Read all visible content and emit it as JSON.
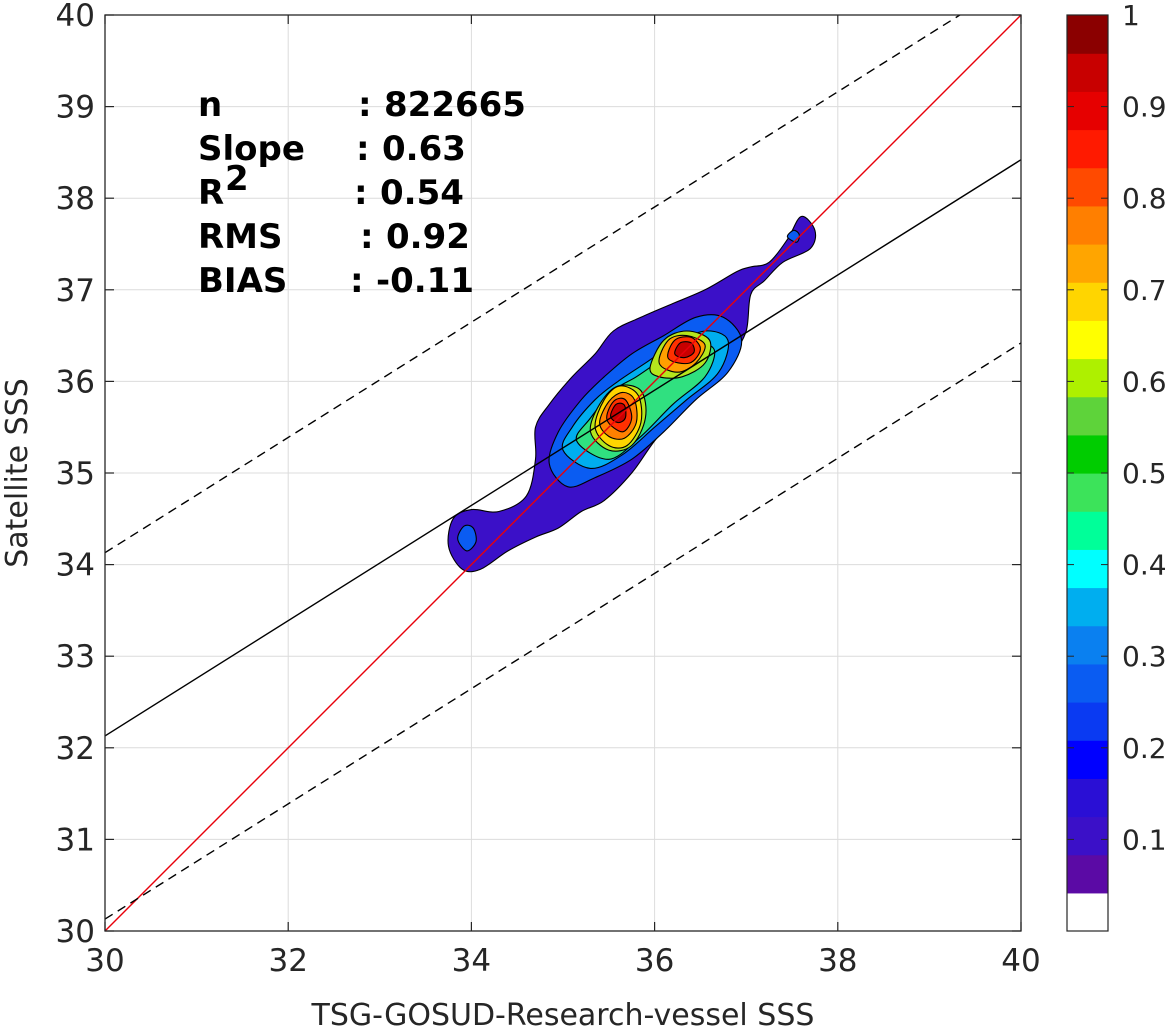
{
  "chart_data": {
    "type": "heatmap",
    "subtype": "filled-contour density scatter",
    "xlabel": "TSG-GOSUD-Research-vessel SSS",
    "ylabel": "Satellite SSS",
    "xlim": [
      30,
      40
    ],
    "ylim": [
      30,
      40
    ],
    "xticks": [
      "30",
      "32",
      "34",
      "36",
      "38",
      "40"
    ],
    "yticks": [
      "30",
      "31",
      "32",
      "33",
      "34",
      "35",
      "36",
      "37",
      "38",
      "39",
      "40"
    ],
    "grid": true,
    "stats": [
      {
        "label": "n",
        "sep": ":",
        "value": "822665"
      },
      {
        "label": "Slope",
        "sep": ":",
        "value": "0.63"
      },
      {
        "label": "R",
        "sup": "2",
        "sep": ":",
        "value": "0.54"
      },
      {
        "label": "RMS",
        "sep": ":",
        "value": "0.92"
      },
      {
        "label": "BIAS",
        "sep": ":",
        "value": "-0.11"
      }
    ],
    "lines": [
      {
        "role": "one-to-one",
        "color": "#e8000b",
        "style": "solid",
        "slope": 1,
        "intercept": 0
      },
      {
        "role": "regression",
        "color": "#000000",
        "style": "solid",
        "slope": 0.63,
        "points": [
          [
            30,
            32.13
          ],
          [
            40,
            38.42
          ]
        ]
      },
      {
        "role": "upper-bound",
        "color": "#000000",
        "style": "dashed",
        "slope": 0.63,
        "points": [
          [
            30,
            34.13
          ],
          [
            40,
            40.42
          ]
        ]
      },
      {
        "role": "lower-bound",
        "color": "#000000",
        "style": "dashed",
        "slope": 0.63,
        "points": [
          [
            30,
            30.13
          ],
          [
            40,
            36.42
          ]
        ]
      }
    ],
    "density_peaks": [
      {
        "x": 35.6,
        "y": 35.7,
        "level": 0.95
      },
      {
        "x": 36.35,
        "y": 36.35,
        "level": 0.95
      }
    ],
    "density_regions": [
      {
        "level": 0.05,
        "color": "#3b10c8",
        "polygon": [
          [
            33.75,
            34.2
          ],
          [
            33.8,
            34.5
          ],
          [
            34.0,
            34.6
          ],
          [
            34.3,
            34.58
          ],
          [
            34.6,
            34.75
          ],
          [
            34.7,
            35.15
          ],
          [
            34.7,
            35.5
          ],
          [
            34.85,
            35.75
          ],
          [
            35.1,
            36.05
          ],
          [
            35.35,
            36.3
          ],
          [
            35.55,
            36.55
          ],
          [
            35.85,
            36.7
          ],
          [
            36.2,
            36.85
          ],
          [
            36.55,
            37.0
          ],
          [
            36.9,
            37.2
          ],
          [
            37.05,
            37.25
          ],
          [
            37.25,
            37.3
          ],
          [
            37.45,
            37.55
          ],
          [
            37.6,
            37.8
          ],
          [
            37.75,
            37.65
          ],
          [
            37.7,
            37.45
          ],
          [
            37.4,
            37.3
          ],
          [
            37.2,
            37.1
          ],
          [
            37.05,
            36.95
          ],
          [
            37.0,
            36.55
          ],
          [
            36.85,
            36.3
          ],
          [
            36.6,
            36.05
          ],
          [
            36.3,
            35.7
          ],
          [
            36.0,
            35.35
          ],
          [
            35.75,
            35.0
          ],
          [
            35.45,
            34.7
          ],
          [
            35.2,
            34.58
          ],
          [
            34.95,
            34.4
          ],
          [
            34.7,
            34.3
          ],
          [
            34.4,
            34.15
          ],
          [
            34.1,
            33.95
          ],
          [
            33.9,
            33.95
          ]
        ]
      },
      {
        "level": 0.15,
        "color": "#0a5cf2",
        "polygon": [
          [
            34.85,
            35.1
          ],
          [
            34.95,
            35.45
          ],
          [
            35.2,
            35.8
          ],
          [
            35.45,
            36.05
          ],
          [
            35.75,
            36.3
          ],
          [
            36.1,
            36.5
          ],
          [
            36.45,
            36.7
          ],
          [
            36.75,
            36.7
          ],
          [
            36.95,
            36.45
          ],
          [
            36.8,
            36.1
          ],
          [
            36.45,
            35.8
          ],
          [
            36.1,
            35.45
          ],
          [
            35.75,
            35.15
          ],
          [
            35.35,
            34.95
          ],
          [
            35.05,
            34.85
          ]
        ]
      },
      {
        "level": 0.3,
        "color": "#00aeef",
        "polygon": [
          [
            35.0,
            35.25
          ],
          [
            35.1,
            35.5
          ],
          [
            35.35,
            35.8
          ],
          [
            35.6,
            36.0
          ],
          [
            35.9,
            36.2
          ],
          [
            36.2,
            36.4
          ],
          [
            36.55,
            36.55
          ],
          [
            36.8,
            36.45
          ],
          [
            36.7,
            36.1
          ],
          [
            36.35,
            35.8
          ],
          [
            36.0,
            35.5
          ],
          [
            35.65,
            35.2
          ],
          [
            35.3,
            35.05
          ]
        ]
      },
      {
        "level": 0.45,
        "color": "#30e080",
        "polygon": [
          [
            35.15,
            35.35
          ],
          [
            35.3,
            35.6
          ],
          [
            35.55,
            35.9
          ],
          [
            35.8,
            36.05
          ],
          [
            36.1,
            36.25
          ],
          [
            36.4,
            36.4
          ],
          [
            36.65,
            36.35
          ],
          [
            36.55,
            36.05
          ],
          [
            36.2,
            35.75
          ],
          [
            35.85,
            35.4
          ],
          [
            35.5,
            35.15
          ]
        ]
      },
      {
        "level": 0.55,
        "color": "#b5e61d",
        "polygon": [
          [
            35.3,
            35.45
          ],
          [
            35.4,
            35.75
          ],
          [
            35.6,
            35.95
          ],
          [
            35.85,
            35.9
          ],
          [
            35.9,
            35.6
          ],
          [
            35.75,
            35.3
          ],
          [
            35.5,
            35.25
          ]
        ]
      },
      {
        "level": 0.65,
        "color": "#ffd500",
        "polygon": [
          [
            35.35,
            35.5
          ],
          [
            35.45,
            35.8
          ],
          [
            35.62,
            35.95
          ],
          [
            35.82,
            35.85
          ],
          [
            35.85,
            35.55
          ],
          [
            35.7,
            35.3
          ],
          [
            35.5,
            35.3
          ]
        ]
      },
      {
        "level": 0.55,
        "color": "#b5e61d",
        "polygon": [
          [
            35.95,
            36.15
          ],
          [
            36.1,
            36.45
          ],
          [
            36.35,
            36.55
          ],
          [
            36.6,
            36.45
          ],
          [
            36.55,
            36.2
          ],
          [
            36.3,
            36.05
          ],
          [
            36.05,
            36.05
          ]
        ]
      },
      {
        "level": 0.7,
        "color": "#ff9f00",
        "polygon": [
          [
            36.05,
            36.2
          ],
          [
            36.15,
            36.45
          ],
          [
            36.35,
            36.5
          ],
          [
            36.55,
            36.4
          ],
          [
            36.45,
            36.2
          ],
          [
            36.25,
            36.1
          ]
        ]
      },
      {
        "level": 0.75,
        "color": "#ff8000",
        "polygon": [
          [
            35.4,
            35.55
          ],
          [
            35.5,
            35.78
          ],
          [
            35.65,
            35.88
          ],
          [
            35.78,
            35.8
          ],
          [
            35.8,
            35.55
          ],
          [
            35.67,
            35.38
          ],
          [
            35.5,
            35.4
          ]
        ]
      },
      {
        "level": 0.85,
        "color": "#ff3000",
        "polygon": [
          [
            35.48,
            35.58
          ],
          [
            35.55,
            35.78
          ],
          [
            35.68,
            35.8
          ],
          [
            35.75,
            35.6
          ],
          [
            35.65,
            35.45
          ]
        ]
      },
      {
        "level": 0.85,
        "color": "#ff3000",
        "polygon": [
          [
            36.15,
            36.25
          ],
          [
            36.22,
            36.45
          ],
          [
            36.4,
            36.48
          ],
          [
            36.5,
            36.35
          ],
          [
            36.38,
            36.2
          ]
        ]
      },
      {
        "level": 0.95,
        "color": "#c80000",
        "polygon": [
          [
            35.52,
            35.62
          ],
          [
            35.58,
            35.75
          ],
          [
            35.67,
            35.74
          ],
          [
            35.68,
            35.6
          ],
          [
            35.6,
            35.55
          ]
        ]
      },
      {
        "level": 0.95,
        "color": "#c80000",
        "polygon": [
          [
            36.22,
            36.3
          ],
          [
            36.28,
            36.42
          ],
          [
            36.4,
            36.42
          ],
          [
            36.43,
            36.32
          ],
          [
            36.33,
            36.26
          ]
        ]
      },
      {
        "level": 0.2,
        "color": "#0a5cf2",
        "polygon": [
          [
            33.85,
            34.28
          ],
          [
            33.92,
            34.42
          ],
          [
            34.02,
            34.4
          ],
          [
            34.05,
            34.25
          ],
          [
            33.95,
            34.15
          ]
        ]
      },
      {
        "level": 0.2,
        "color": "#0a5cf2",
        "polygon": [
          [
            37.45,
            37.58
          ],
          [
            37.52,
            37.65
          ],
          [
            37.58,
            37.6
          ],
          [
            37.55,
            37.52
          ]
        ]
      }
    ],
    "colorbar": {
      "ticks": [
        "0.1",
        "0.2",
        "0.3",
        "0.4",
        "0.5",
        "0.6",
        "0.7",
        "0.8",
        "0.9",
        "1"
      ],
      "range": [
        0,
        1
      ],
      "colors": [
        "#ffffff",
        "#5b0aa5",
        "#3b10c8",
        "#2a0fd5",
        "#0000ff",
        "#0a3af2",
        "#0a5cf2",
        "#0a80f0",
        "#00aeef",
        "#00ffff",
        "#00ff99",
        "#3ce35a",
        "#00cc00",
        "#5ed33a",
        "#aef000",
        "#ffff00",
        "#ffd500",
        "#ffa500",
        "#ff7f00",
        "#ff4a00",
        "#ff1a00",
        "#e60000",
        "#c80000",
        "#8b0000"
      ]
    },
    "colors": {
      "one_to_one": "#e8000b",
      "axis": "#262626",
      "grid": "#dcdcdc"
    }
  }
}
